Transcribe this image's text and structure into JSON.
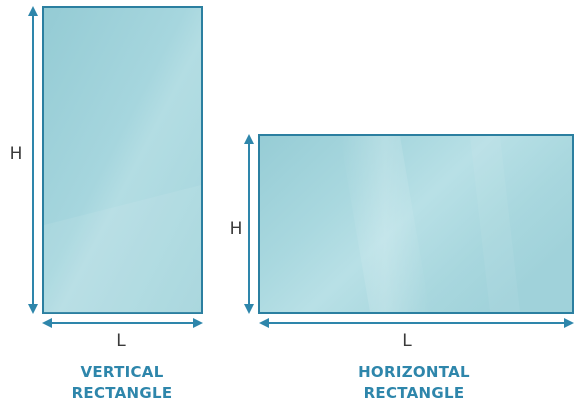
{
  "vertical": {
    "height_label": "H",
    "length_label": "L",
    "caption_line1": "VERTICAL",
    "caption_line2": "RECTANGLE"
  },
  "horizontal": {
    "height_label": "H",
    "length_label": "L",
    "caption_line1": "HORIZONTAL",
    "caption_line2": "RECTANGLE"
  },
  "colors": {
    "accent": "#2e86ab",
    "glass": "#a9d8e0",
    "frame": "#2b7fa0"
  }
}
